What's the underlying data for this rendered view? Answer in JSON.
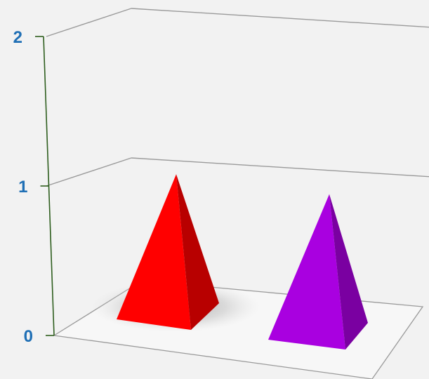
{
  "chart_data": {
    "type": "bar",
    "style": "3d-pyramid",
    "title": "",
    "xlabel": "",
    "ylabel": "",
    "categories": [
      "",
      ""
    ],
    "values": [
      0.95,
      0.95
    ],
    "ylim": [
      0,
      2
    ],
    "yticks": [
      "0",
      "1",
      "2"
    ],
    "grid": true,
    "legend": "none",
    "colors": {
      "pyramid_1": "#ff0000",
      "pyramid_2": "#a900e0",
      "axis": "#2e5e1e",
      "tick_label": "#1f6fb5",
      "gridline": "#9a9a9a",
      "background": "#f2f2f2"
    }
  }
}
